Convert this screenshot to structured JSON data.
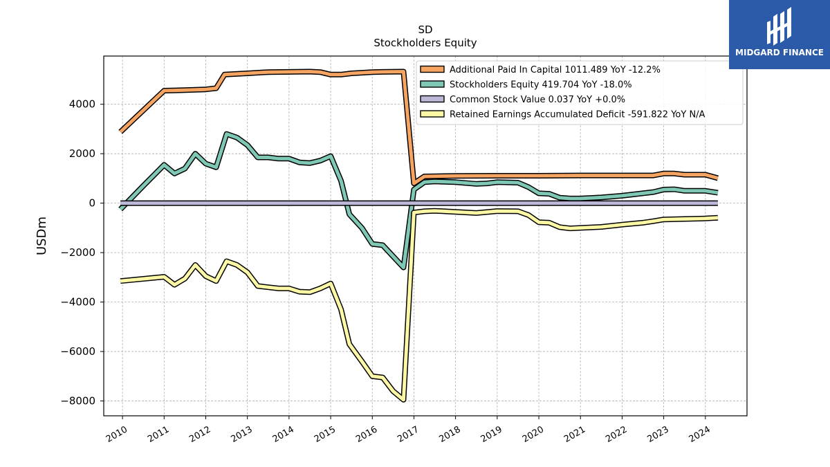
{
  "logo": {
    "text": "MIDGARD FINANCE"
  },
  "chart_data": {
    "type": "line",
    "title": "SD",
    "subtitle": "Stockholders  Equity",
    "ylabel": "USDm",
    "xlabel": "",
    "xlim": [
      2009.55,
      2025.0
    ],
    "ylim": [
      -8600,
      5950
    ],
    "x_ticks": [
      2010,
      2011,
      2012,
      2013,
      2014,
      2015,
      2016,
      2017,
      2018,
      2019,
      2020,
      2021,
      2022,
      2023,
      2024
    ],
    "x_tick_labels": [
      "2010",
      "2011",
      "2012",
      "2013",
      "2014",
      "2015",
      "2016",
      "2017",
      "2018",
      "2019",
      "2020",
      "2021",
      "2022",
      "2023",
      "2024"
    ],
    "y_ticks": [
      4000,
      2000,
      0,
      -2000,
      -4000,
      -6000,
      -8000
    ],
    "y_tick_labels": [
      "4000",
      "2000",
      "0",
      "−2000",
      "−4000",
      "−6000",
      "−8000"
    ],
    "grid": true,
    "legend_position": "top-right",
    "series": [
      {
        "name": "Additional Paid In Capital  1011.489 YoY -12.2%",
        "color": "#f5a462",
        "points": [
          [
            2009.95,
            2880
          ],
          [
            2011.0,
            4550
          ],
          [
            2011.5,
            4570
          ],
          [
            2012.0,
            4600
          ],
          [
            2012.25,
            4650
          ],
          [
            2012.45,
            5200
          ],
          [
            2013.0,
            5250
          ],
          [
            2013.5,
            5300
          ],
          [
            2014.0,
            5310
          ],
          [
            2014.5,
            5320
          ],
          [
            2014.75,
            5300
          ],
          [
            2015.0,
            5200
          ],
          [
            2015.25,
            5200
          ],
          [
            2015.5,
            5250
          ],
          [
            2016.0,
            5300
          ],
          [
            2016.25,
            5310
          ],
          [
            2016.75,
            5320
          ],
          [
            2017.0,
            800
          ],
          [
            2017.25,
            1080
          ],
          [
            2017.5,
            1090
          ],
          [
            2018.0,
            1100
          ],
          [
            2019.0,
            1110
          ],
          [
            2020.0,
            1110
          ],
          [
            2021.0,
            1120
          ],
          [
            2022.0,
            1120
          ],
          [
            2022.75,
            1120
          ],
          [
            2023.0,
            1200
          ],
          [
            2023.25,
            1200
          ],
          [
            2023.5,
            1150
          ],
          [
            2024.0,
            1150
          ],
          [
            2024.3,
            1011.489
          ]
        ]
      },
      {
        "name": "Stockholders Equity  419.704 YoY -18.0%",
        "color": "#7fc8b5",
        "points": [
          [
            2009.95,
            -250
          ],
          [
            2010.5,
            700
          ],
          [
            2011.0,
            1550
          ],
          [
            2011.25,
            1200
          ],
          [
            2011.5,
            1400
          ],
          [
            2011.75,
            2000
          ],
          [
            2012.0,
            1600
          ],
          [
            2012.25,
            1450
          ],
          [
            2012.5,
            2800
          ],
          [
            2012.75,
            2650
          ],
          [
            2013.0,
            2350
          ],
          [
            2013.25,
            1850
          ],
          [
            2013.5,
            1850
          ],
          [
            2013.75,
            1800
          ],
          [
            2014.0,
            1800
          ],
          [
            2014.25,
            1650
          ],
          [
            2014.5,
            1620
          ],
          [
            2014.75,
            1720
          ],
          [
            2015.0,
            1900
          ],
          [
            2015.25,
            900
          ],
          [
            2015.45,
            -450
          ],
          [
            2015.75,
            -1000
          ],
          [
            2016.0,
            -1650
          ],
          [
            2016.25,
            -1700
          ],
          [
            2016.5,
            -2150
          ],
          [
            2016.75,
            -2600
          ],
          [
            2017.0,
            550
          ],
          [
            2017.25,
            850
          ],
          [
            2017.5,
            880
          ],
          [
            2018.0,
            850
          ],
          [
            2018.5,
            780
          ],
          [
            2018.75,
            800
          ],
          [
            2019.0,
            850
          ],
          [
            2019.5,
            830
          ],
          [
            2019.75,
            650
          ],
          [
            2020.0,
            400
          ],
          [
            2020.25,
            380
          ],
          [
            2020.5,
            220
          ],
          [
            2020.75,
            190
          ],
          [
            2021.0,
            190
          ],
          [
            2021.5,
            230
          ],
          [
            2022.0,
            300
          ],
          [
            2022.5,
            400
          ],
          [
            2022.75,
            450
          ],
          [
            2023.0,
            550
          ],
          [
            2023.25,
            560
          ],
          [
            2023.5,
            500
          ],
          [
            2024.0,
            500
          ],
          [
            2024.3,
            419.704
          ]
        ]
      },
      {
        "name": "Common Stock Value  0.037 YoY +0.0%",
        "color": "#bcb8d8",
        "points": [
          [
            2009.95,
            0.037
          ],
          [
            2024.3,
            0.037
          ]
        ]
      },
      {
        "name": "Retained Earnings Accumulated Deficit  -591.822 YoY N/A",
        "color": "#fdf8a6",
        "points": [
          [
            2009.95,
            -3150
          ],
          [
            2011.0,
            -2980
          ],
          [
            2011.25,
            -3300
          ],
          [
            2011.5,
            -3050
          ],
          [
            2011.75,
            -2500
          ],
          [
            2012.0,
            -2950
          ],
          [
            2012.25,
            -3150
          ],
          [
            2012.5,
            -2350
          ],
          [
            2012.75,
            -2500
          ],
          [
            2013.0,
            -2800
          ],
          [
            2013.25,
            -3350
          ],
          [
            2013.5,
            -3400
          ],
          [
            2013.75,
            -3450
          ],
          [
            2014.0,
            -3450
          ],
          [
            2014.25,
            -3580
          ],
          [
            2014.5,
            -3600
          ],
          [
            2014.75,
            -3450
          ],
          [
            2015.0,
            -3250
          ],
          [
            2015.25,
            -4300
          ],
          [
            2015.45,
            -5700
          ],
          [
            2015.75,
            -6400
          ],
          [
            2016.0,
            -7000
          ],
          [
            2016.25,
            -7050
          ],
          [
            2016.5,
            -7600
          ],
          [
            2016.75,
            -7950
          ],
          [
            2017.0,
            -380
          ],
          [
            2017.25,
            -330
          ],
          [
            2017.5,
            -310
          ],
          [
            2018.0,
            -350
          ],
          [
            2018.5,
            -400
          ],
          [
            2018.75,
            -360
          ],
          [
            2019.0,
            -320
          ],
          [
            2019.5,
            -330
          ],
          [
            2019.75,
            -480
          ],
          [
            2020.0,
            -770
          ],
          [
            2020.25,
            -790
          ],
          [
            2020.5,
            -970
          ],
          [
            2020.75,
            -1020
          ],
          [
            2021.0,
            -1000
          ],
          [
            2021.5,
            -960
          ],
          [
            2022.0,
            -870
          ],
          [
            2022.5,
            -790
          ],
          [
            2022.75,
            -730
          ],
          [
            2023.0,
            -660
          ],
          [
            2023.5,
            -640
          ],
          [
            2024.0,
            -620
          ],
          [
            2024.3,
            -591.822
          ]
        ]
      }
    ]
  }
}
